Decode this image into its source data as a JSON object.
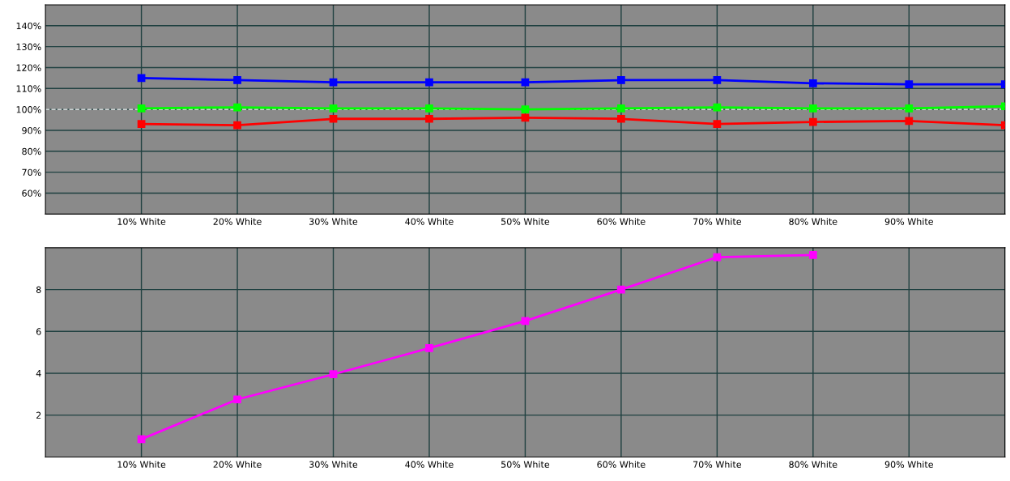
{
  "chart_data": [
    {
      "type": "line",
      "x": [
        10,
        20,
        30,
        40,
        50,
        60,
        70,
        80,
        90,
        100
      ],
      "series": [
        {
          "color": "#0000ff",
          "values": [
            115,
            114,
            113,
            113,
            113,
            114,
            114,
            112.5,
            112,
            112
          ]
        },
        {
          "color": "#00ff00",
          "values": [
            100.5,
            101,
            100.5,
            100.5,
            100,
            100.5,
            101,
            100.5,
            100.5,
            101.5
          ]
        },
        {
          "color": "#ff0000",
          "values": [
            93,
            92.5,
            95.5,
            95.5,
            96,
            95.5,
            93,
            94,
            94.5,
            92.5
          ]
        }
      ],
      "xlim": [
        0,
        100
      ],
      "xticks": [
        {
          "value": 10,
          "label": "10% White"
        },
        {
          "value": 20,
          "label": "20% White"
        },
        {
          "value": 30,
          "label": "30% White"
        },
        {
          "value": 40,
          "label": "40% White"
        },
        {
          "value": 50,
          "label": "50% White"
        },
        {
          "value": 60,
          "label": "60% White"
        },
        {
          "value": 70,
          "label": "70% White"
        },
        {
          "value": 80,
          "label": "80% White"
        },
        {
          "value": 90,
          "label": "90% White"
        },
        {
          "value": 100,
          "label": null
        }
      ],
      "ylim": [
        50,
        150
      ],
      "yticks": [
        {
          "value": 60,
          "label": "60%"
        },
        {
          "value": 70,
          "label": "70%"
        },
        {
          "value": 80,
          "label": "80%"
        },
        {
          "value": 90,
          "label": "90%"
        },
        {
          "value": 100,
          "label": "100%"
        },
        {
          "value": 110,
          "label": "110%"
        },
        {
          "value": 120,
          "label": "120%"
        },
        {
          "value": 130,
          "label": "130%"
        },
        {
          "value": 140,
          "label": "140%"
        }
      ],
      "ref_lines": [
        {
          "axis": "y",
          "value": 100,
          "color": "#ffffff",
          "line_style": "dashed"
        }
      ],
      "grid": true,
      "marker": "square",
      "line_style": "solid"
    },
    {
      "type": "line",
      "series": [
        {
          "color": "#ff00ff",
          "x": [
            10,
            20,
            30,
            40,
            50,
            60,
            70,
            80
          ],
          "values": [
            0.85,
            2.75,
            3.95,
            5.2,
            6.5,
            8.0,
            9.55,
            9.65
          ]
        }
      ],
      "xlim": [
        0,
        100
      ],
      "xticks": [
        {
          "value": 10,
          "label": "10% White"
        },
        {
          "value": 20,
          "label": "20% White"
        },
        {
          "value": 30,
          "label": "30% White"
        },
        {
          "value": 40,
          "label": "40% White"
        },
        {
          "value": 50,
          "label": "50% White"
        },
        {
          "value": 60,
          "label": "60% White"
        },
        {
          "value": 70,
          "label": "70% White"
        },
        {
          "value": 80,
          "label": "80% White"
        },
        {
          "value": 90,
          "label": "90% White"
        },
        {
          "value": 100,
          "label": null
        }
      ],
      "ylim": [
        0,
        10
      ],
      "yticks": [
        2,
        4,
        6,
        8
      ],
      "grid": true,
      "marker": "square",
      "line_style": "solid"
    }
  ]
}
